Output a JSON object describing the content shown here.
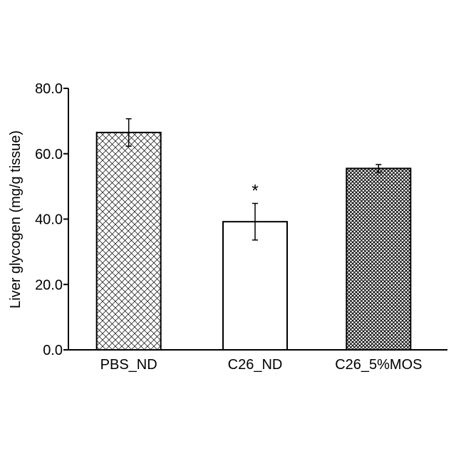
{
  "chart_data": {
    "type": "bar",
    "title": "",
    "xlabel": "",
    "ylabel": "Liver glycogen (mg/g tissue)",
    "ylim": [
      0,
      80
    ],
    "yticks": [
      "0.0",
      "20.0",
      "40.0",
      "60.0",
      "80.0"
    ],
    "ytick_values": [
      0,
      20,
      40,
      60,
      80
    ],
    "categories": [
      "PBS_ND",
      "C26_ND",
      "C26_5%MOS"
    ],
    "values": [
      66.5,
      39.2,
      55.5
    ],
    "errors": [
      4.2,
      5.6,
      1.2
    ],
    "fills": [
      "hatch-sparse",
      "solid-white",
      "hatch-dense"
    ],
    "annotations": [
      {
        "category": "C26_ND",
        "text": "*"
      }
    ],
    "grid": false,
    "legend": "none",
    "colors": {
      "bar_edge": "#000000",
      "hatch": "#000000",
      "background": "#ffffff"
    }
  }
}
